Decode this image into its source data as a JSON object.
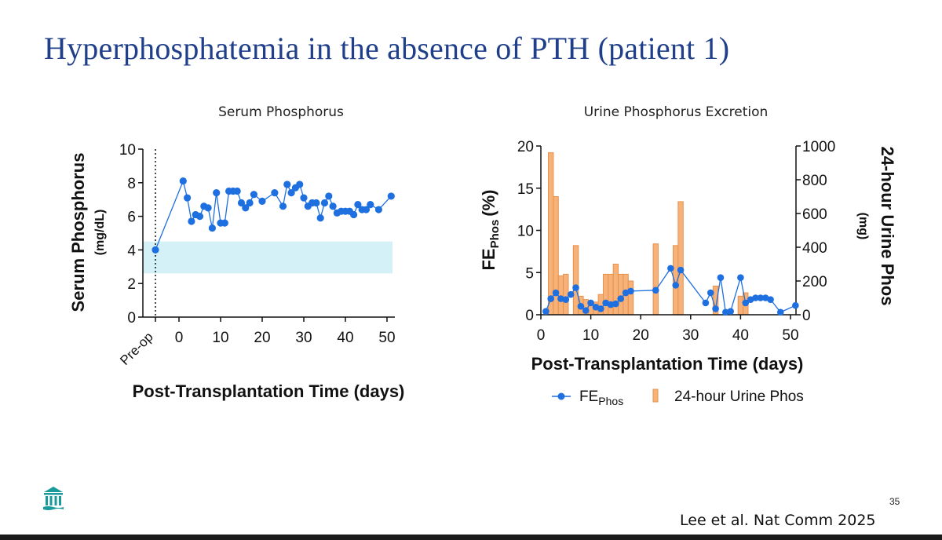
{
  "slide": {
    "title": "Hyperphosphatemia in the absence of PTH (patient 1)",
    "page_number": "35",
    "citation": "Lee et al. Nat Comm 2025",
    "logo_icon": "institution-columns-icon"
  },
  "colors": {
    "title": "#1f3f8a",
    "series_blue": "#1e6fe0",
    "bar_orange": "#f7b27a",
    "bar_edge": "#e8914a",
    "normal_band": "#d4f1f8",
    "logo": "#1a9a9a"
  },
  "chart_data": [
    {
      "type": "line",
      "title": "Serum Phosphorus",
      "ylabel_line1": "Serum Phosphorus",
      "ylabel_line2": "(mg/dL)",
      "xlabel": "Post-Transplantation Time (days)",
      "ylim": [
        0,
        10
      ],
      "xlim": [
        -5,
        51
      ],
      "yticks": [
        "0",
        "2",
        "4",
        "6",
        "8",
        "10"
      ],
      "xticks": [
        "0",
        "10",
        "20",
        "30",
        "40",
        "50"
      ],
      "preop_label": "Pre-op",
      "normal_range": [
        2.6,
        4.5
      ],
      "series": [
        {
          "name": "Serum Phosphorus",
          "x": [
            -5,
            1,
            2,
            3,
            4,
            5,
            6,
            7,
            8,
            9,
            10,
            11,
            12,
            13,
            14,
            15,
            16,
            17,
            18,
            20,
            23,
            25,
            26,
            27,
            28,
            29,
            30,
            31,
            32,
            33,
            34,
            35,
            36,
            37,
            38,
            39,
            40,
            41,
            42,
            43,
            44,
            45,
            46,
            48,
            51
          ],
          "y": [
            4.0,
            8.1,
            7.1,
            5.7,
            6.1,
            6.0,
            6.6,
            6.5,
            5.3,
            7.4,
            5.6,
            5.6,
            7.5,
            7.5,
            7.5,
            6.8,
            6.5,
            6.8,
            7.3,
            6.9,
            7.4,
            6.6,
            7.9,
            7.4,
            7.7,
            7.9,
            7.1,
            6.6,
            6.8,
            6.8,
            5.9,
            6.8,
            7.2,
            6.6,
            6.2,
            6.3,
            6.3,
            6.3,
            6.1,
            6.7,
            6.4,
            6.4,
            6.7,
            6.4,
            7.2
          ]
        }
      ]
    },
    {
      "type": "bar+line",
      "title": "Urine Phosphorus Excretion",
      "ylabel_left": "FE",
      "ylabel_left_sub": "Phos",
      "ylabel_left_unit": "(%)",
      "ylabel_right_line1": "24-hour Urine Phos",
      "ylabel_right_line2": "(mg)",
      "xlabel": "Post-Transplantation Time (days)",
      "ylim_left": [
        0,
        20
      ],
      "ylim_right": [
        0,
        1000
      ],
      "xlim": [
        0,
        51
      ],
      "yticks_left": [
        "0",
        "5",
        "10",
        "15",
        "20"
      ],
      "yticks_right": [
        "0",
        "200",
        "400",
        "600",
        "800",
        "1000"
      ],
      "xticks": [
        "0",
        "10",
        "20",
        "30",
        "40",
        "50"
      ],
      "legend": {
        "line_main": "FE",
        "line_sub": "Phos",
        "bars": "24-hour Urine Phos",
        "placement": "bottom"
      },
      "bars": {
        "name": "24-hour Urine Phos",
        "x": [
          2,
          3,
          4,
          5,
          7,
          8,
          9,
          10,
          11,
          12,
          13,
          14,
          15,
          16,
          17,
          18,
          23,
          27,
          28,
          35,
          40,
          41
        ],
        "values": [
          960,
          700,
          230,
          240,
          410,
          110,
          90,
          70,
          75,
          120,
          240,
          240,
          300,
          240,
          240,
          200,
          420,
          410,
          670,
          170,
          110,
          130
        ]
      },
      "series": [
        {
          "name": "FEPhos",
          "x": [
            1,
            2,
            3,
            4,
            5,
            6,
            7,
            8,
            9,
            10,
            11,
            12,
            13,
            14,
            15,
            16,
            17,
            18,
            23,
            26,
            27,
            28,
            33,
            34,
            35,
            36,
            37,
            38,
            40,
            41,
            42,
            43,
            44,
            45,
            46,
            48,
            51
          ],
          "y": [
            0.4,
            1.9,
            2.6,
            1.9,
            1.8,
            2.4,
            3.2,
            1.0,
            0.5,
            1.4,
            0.9,
            0.7,
            1.4,
            1.2,
            1.3,
            1.9,
            2.6,
            2.8,
            2.9,
            5.5,
            3.5,
            5.3,
            1.4,
            2.6,
            0.7,
            4.4,
            0.3,
            0.4,
            4.4,
            1.4,
            1.8,
            2.0,
            2.0,
            2.0,
            1.8,
            0.3,
            1.1
          ]
        }
      ]
    }
  ]
}
